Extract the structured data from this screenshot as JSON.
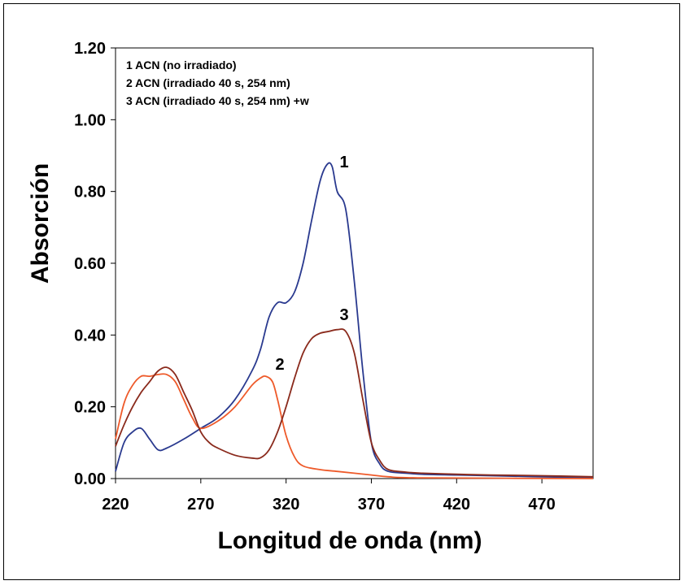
{
  "chart_data": {
    "type": "line",
    "title": "",
    "xlabel": "Longitud de onda (nm)",
    "ylabel": "Absorción",
    "xlim": [
      220,
      500
    ],
    "ylim": [
      0,
      1.2
    ],
    "x_ticks": [
      "220",
      "270",
      "320",
      "370",
      "420",
      "470"
    ],
    "y_ticks": [
      "0.00",
      "0.20",
      "0.40",
      "0.60",
      "0.80",
      "1.00",
      "1.20"
    ],
    "legend": [
      "1 ACN (no irradiado)",
      "2 ACN (irradiado 40 s, 254 nm)",
      "3 ACN (irradiado 40 s, 254 nm) +w"
    ],
    "series": [
      {
        "label": "1",
        "color": "#2a3a8f",
        "x": [
          220,
          225,
          230,
          235,
          240,
          245,
          250,
          260,
          270,
          280,
          290,
          300,
          305,
          310,
          315,
          320,
          325,
          330,
          335,
          340,
          344,
          347,
          350,
          355,
          360,
          365,
          370,
          375,
          380,
          390,
          400,
          420,
          440,
          470,
          500
        ],
        "y": [
          0.02,
          0.1,
          0.13,
          0.14,
          0.11,
          0.08,
          0.085,
          0.11,
          0.14,
          0.17,
          0.22,
          0.3,
          0.36,
          0.45,
          0.49,
          0.49,
          0.52,
          0.6,
          0.72,
          0.83,
          0.875,
          0.87,
          0.8,
          0.75,
          0.55,
          0.3,
          0.1,
          0.04,
          0.02,
          0.015,
          0.012,
          0.01,
          0.008,
          0.005,
          0.003
        ]
      },
      {
        "label": "2",
        "color": "#ee5a2a",
        "x": [
          220,
          225,
          230,
          235,
          240,
          245,
          250,
          255,
          260,
          265,
          270,
          280,
          290,
          300,
          305,
          308,
          312,
          315,
          320,
          325,
          330,
          340,
          350,
          360,
          370,
          380,
          400,
          500
        ],
        "y": [
          0.11,
          0.21,
          0.26,
          0.285,
          0.285,
          0.29,
          0.29,
          0.27,
          0.22,
          0.17,
          0.14,
          0.16,
          0.2,
          0.26,
          0.28,
          0.285,
          0.27,
          0.22,
          0.12,
          0.06,
          0.035,
          0.025,
          0.02,
          0.015,
          0.01,
          0.005,
          0.002,
          0.0
        ]
      },
      {
        "label": "3",
        "color": "#8a2a1c",
        "x": [
          220,
          225,
          230,
          235,
          240,
          245,
          250,
          255,
          260,
          265,
          270,
          275,
          280,
          290,
          300,
          305,
          310,
          315,
          320,
          325,
          330,
          335,
          340,
          345,
          350,
          355,
          360,
          365,
          370,
          375,
          380,
          390,
          400,
          420,
          440,
          470,
          500
        ],
        "y": [
          0.09,
          0.15,
          0.2,
          0.24,
          0.27,
          0.3,
          0.31,
          0.29,
          0.24,
          0.19,
          0.13,
          0.1,
          0.085,
          0.065,
          0.057,
          0.058,
          0.08,
          0.13,
          0.2,
          0.28,
          0.35,
          0.39,
          0.405,
          0.41,
          0.415,
          0.41,
          0.35,
          0.22,
          0.1,
          0.05,
          0.025,
          0.018,
          0.015,
          0.012,
          0.01,
          0.008,
          0.005
        ]
      }
    ]
  }
}
